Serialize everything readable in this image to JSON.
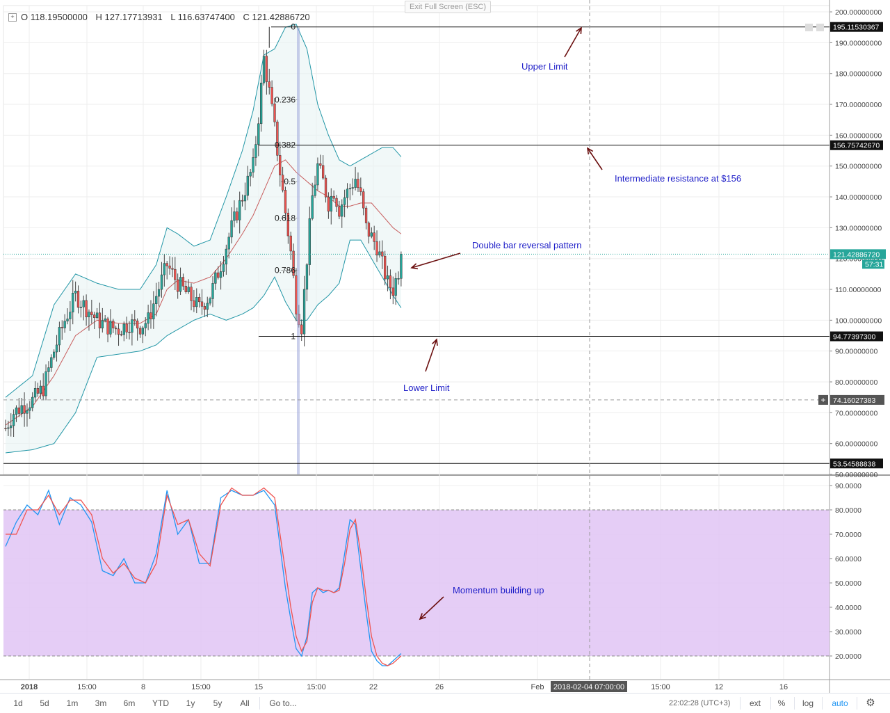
{
  "ohlc": {
    "open": "O 118.19500000",
    "high": "H 127.17713931",
    "low": "L 116.63747400",
    "close": "C 121.42886720"
  },
  "exit_fullscreen": "Exit Full Screen (ESC)",
  "chart_data": [
    {
      "type": "candlestick",
      "panel": "price",
      "ylim": [
        50,
        200
      ],
      "y_ticks": [
        50,
        60,
        70,
        80,
        90,
        100,
        110,
        120,
        130,
        140,
        150,
        160,
        170,
        180,
        190,
        200
      ],
      "y_tick_labels": [
        "50.00000000",
        "60.00000000",
        "70.00000000",
        "80.00000000",
        "90.00000000",
        "100.00000000",
        "110.00000000",
        "120.00000000",
        "130.00000000",
        "140.00000000",
        "150.00000000",
        "160.00000000",
        "170.00000000",
        "180.00000000",
        "190.00000000",
        "200.00000000"
      ],
      "x_tick_labels": [
        "2018",
        "15:00",
        "8",
        "15:00",
        "15",
        "15:00",
        "22",
        "26",
        "Feb",
        "15:00",
        "12",
        "16"
      ],
      "price_path": [
        [
          0,
          65
        ],
        [
          3,
          70
        ],
        [
          6,
          72
        ],
        [
          10,
          74
        ],
        [
          14,
          78
        ],
        [
          18,
          90
        ],
        [
          22,
          100
        ],
        [
          26,
          108
        ],
        [
          30,
          104
        ],
        [
          34,
          100
        ],
        [
          38,
          98
        ],
        [
          42,
          97
        ],
        [
          46,
          99
        ],
        [
          50,
          98
        ],
        [
          53,
          100
        ],
        [
          56,
          108
        ],
        [
          60,
          118
        ],
        [
          64,
          112
        ],
        [
          68,
          108
        ],
        [
          72,
          104
        ],
        [
          76,
          108
        ],
        [
          80,
          118
        ],
        [
          84,
          130
        ],
        [
          88,
          140
        ],
        [
          92,
          150
        ],
        [
          94,
          166
        ],
        [
          96,
          185
        ],
        [
          98,
          174
        ],
        [
          100,
          162
        ],
        [
          102,
          148
        ],
        [
          104,
          135
        ],
        [
          106,
          122
        ],
        [
          108,
          105
        ],
        [
          110,
          98
        ],
        [
          112,
          120
        ],
        [
          114,
          140
        ],
        [
          116,
          150
        ],
        [
          118,
          145
        ],
        [
          120,
          138
        ],
        [
          122,
          142
        ],
        [
          124,
          136
        ],
        [
          126,
          140
        ],
        [
          128,
          143
        ],
        [
          130,
          146
        ],
        [
          132,
          140
        ],
        [
          134,
          130
        ],
        [
          136,
          127
        ],
        [
          138,
          124
        ],
        [
          140,
          118
        ],
        [
          142,
          112
        ],
        [
          144,
          110
        ],
        [
          146,
          116
        ],
        [
          147,
          121.43
        ]
      ],
      "bollinger": {
        "upper": [
          [
            0,
            75
          ],
          [
            10,
            82
          ],
          [
            18,
            105
          ],
          [
            26,
            115
          ],
          [
            34,
            112
          ],
          [
            42,
            110
          ],
          [
            50,
            110
          ],
          [
            56,
            118
          ],
          [
            60,
            130
          ],
          [
            64,
            128
          ],
          [
            70,
            124
          ],
          [
            76,
            126
          ],
          [
            82,
            140
          ],
          [
            88,
            155
          ],
          [
            92,
            168
          ],
          [
            96,
            186
          ],
          [
            100,
            188
          ],
          [
            104,
            195
          ],
          [
            108,
            196
          ],
          [
            112,
            188
          ],
          [
            116,
            170
          ],
          [
            120,
            160
          ],
          [
            124,
            152
          ],
          [
            128,
            150
          ],
          [
            132,
            152
          ],
          [
            136,
            154
          ],
          [
            140,
            156
          ],
          [
            144,
            156
          ],
          [
            147,
            153
          ]
        ],
        "middle": [
          [
            0,
            66
          ],
          [
            10,
            72
          ],
          [
            18,
            82
          ],
          [
            26,
            95
          ],
          [
            34,
            100
          ],
          [
            42,
            99
          ],
          [
            50,
            99
          ],
          [
            56,
            102
          ],
          [
            60,
            110
          ],
          [
            64,
            113
          ],
          [
            70,
            112
          ],
          [
            76,
            114
          ],
          [
            82,
            120
          ],
          [
            88,
            128
          ],
          [
            92,
            134
          ],
          [
            96,
            142
          ],
          [
            100,
            150
          ],
          [
            104,
            152
          ],
          [
            108,
            148
          ],
          [
            112,
            145
          ],
          [
            116,
            142
          ],
          [
            120,
            140
          ],
          [
            124,
            137
          ],
          [
            128,
            137
          ],
          [
            132,
            138
          ],
          [
            136,
            138
          ],
          [
            140,
            134
          ],
          [
            144,
            130
          ],
          [
            147,
            128
          ]
        ],
        "lower": [
          [
            0,
            57
          ],
          [
            10,
            58
          ],
          [
            18,
            60
          ],
          [
            26,
            70
          ],
          [
            34,
            88
          ],
          [
            42,
            89
          ],
          [
            50,
            90
          ],
          [
            56,
            92
          ],
          [
            60,
            95
          ],
          [
            64,
            97
          ],
          [
            70,
            100
          ],
          [
            76,
            102
          ],
          [
            82,
            100
          ],
          [
            88,
            102
          ],
          [
            92,
            104
          ],
          [
            96,
            108
          ],
          [
            100,
            114
          ],
          [
            104,
            106
          ],
          [
            108,
            100
          ],
          [
            112,
            100
          ],
          [
            116,
            105
          ],
          [
            120,
            108
          ],
          [
            124,
            112
          ],
          [
            128,
            126
          ],
          [
            132,
            126
          ],
          [
            136,
            120
          ],
          [
            140,
            114
          ],
          [
            144,
            108
          ],
          [
            147,
            104
          ]
        ]
      },
      "horizontal_lines": [
        {
          "label": "195.11530367",
          "value": 195.1153
        },
        {
          "label": "156.75742670",
          "value": 156.7574
        },
        {
          "label": "94.77397300",
          "value": 94.774
        },
        {
          "label": "53.54588838",
          "value": 53.546
        }
      ],
      "current_price": {
        "label": "121.42886720",
        "value": 121.4289,
        "countdown": "57:31"
      },
      "crosshair": {
        "price_label": "74.16027383",
        "value": 74.16,
        "time_label": "2018-02-04 07:00:00",
        "bar": 217
      },
      "fibonacci": {
        "high": 195.1153,
        "low": 94.774,
        "levels": [
          {
            "ratio": 0,
            "label": "0"
          },
          {
            "ratio": 0.236,
            "label": "0.236"
          },
          {
            "ratio": 0.382,
            "label": "0.382"
          },
          {
            "ratio": 0.5,
            "label": "0.5"
          },
          {
            "ratio": 0.618,
            "label": "0.618"
          },
          {
            "ratio": 0.786,
            "label": "0.786"
          },
          {
            "ratio": 1,
            "label": "1"
          }
        ]
      },
      "annotations": [
        {
          "text": "Upper Limit",
          "value": 183
        },
        {
          "text": "Intermediate resistance at $156",
          "value": 147
        },
        {
          "text": "Double bar reversal pattern",
          "value": 124
        },
        {
          "text": "Lower Limit",
          "value": 79
        }
      ]
    },
    {
      "type": "line",
      "panel": "stochastic",
      "ylim": [
        12,
        92
      ],
      "y_ticks": [
        20,
        30,
        40,
        50,
        60,
        70,
        80,
        90
      ],
      "y_tick_labels": [
        "20.0000",
        "30.0000",
        "40.0000",
        "50.0000",
        "60.0000",
        "70.0000",
        "80.0000",
        "90.0000"
      ],
      "band": [
        20,
        80
      ],
      "series": [
        {
          "color": "#2196f3",
          "values": [
            [
              0,
              65
            ],
            [
              4,
              75
            ],
            [
              8,
              82
            ],
            [
              12,
              78
            ],
            [
              16,
              88
            ],
            [
              20,
              74
            ],
            [
              24,
              85
            ],
            [
              28,
              82
            ],
            [
              32,
              75
            ],
            [
              36,
              55
            ],
            [
              40,
              53
            ],
            [
              44,
              60
            ],
            [
              48,
              50
            ],
            [
              52,
              50
            ],
            [
              56,
              62
            ],
            [
              60,
              88
            ],
            [
              64,
              70
            ],
            [
              68,
              76
            ],
            [
              72,
              58
            ],
            [
              76,
              58
            ],
            [
              80,
              85
            ],
            [
              84,
              88
            ],
            [
              88,
              86
            ],
            [
              92,
              86
            ],
            [
              96,
              88
            ],
            [
              100,
              82
            ],
            [
              102,
              65
            ],
            [
              104,
              48
            ],
            [
              106,
              35
            ],
            [
              108,
              23
            ],
            [
              110,
              20
            ],
            [
              112,
              28
            ],
            [
              114,
              46
            ],
            [
              116,
              48
            ],
            [
              118,
              46
            ],
            [
              120,
              47
            ],
            [
              122,
              46
            ],
            [
              124,
              48
            ],
            [
              126,
              62
            ],
            [
              128,
              76
            ],
            [
              130,
              74
            ],
            [
              132,
              56
            ],
            [
              134,
              38
            ],
            [
              136,
              22
            ],
            [
              138,
              18
            ],
            [
              140,
              16
            ],
            [
              142,
              16
            ],
            [
              144,
              18
            ],
            [
              147,
              21
            ]
          ]
        },
        {
          "color": "#ef5350",
          "values": [
            [
              0,
              70
            ],
            [
              4,
              70
            ],
            [
              8,
              80
            ],
            [
              12,
              80
            ],
            [
              16,
              86
            ],
            [
              20,
              78
            ],
            [
              24,
              84
            ],
            [
              28,
              84
            ],
            [
              32,
              78
            ],
            [
              36,
              60
            ],
            [
              40,
              54
            ],
            [
              44,
              58
            ],
            [
              48,
              52
            ],
            [
              52,
              50
            ],
            [
              56,
              58
            ],
            [
              60,
              86
            ],
            [
              64,
              74
            ],
            [
              68,
              76
            ],
            [
              72,
              62
            ],
            [
              76,
              57
            ],
            [
              80,
              82
            ],
            [
              84,
              89
            ],
            [
              88,
              86
            ],
            [
              92,
              86
            ],
            [
              96,
              89
            ],
            [
              100,
              85
            ],
            [
              102,
              70
            ],
            [
              104,
              55
            ],
            [
              106,
              40
            ],
            [
              108,
              28
            ],
            [
              110,
              22
            ],
            [
              112,
              26
            ],
            [
              114,
              42
            ],
            [
              116,
              48
            ],
            [
              118,
              47
            ],
            [
              120,
              47
            ],
            [
              122,
              46
            ],
            [
              124,
              47
            ],
            [
              126,
              58
            ],
            [
              128,
              72
            ],
            [
              130,
              76
            ],
            [
              132,
              62
            ],
            [
              134,
              44
            ],
            [
              136,
              28
            ],
            [
              138,
              20
            ],
            [
              140,
              17
            ],
            [
              142,
              16
            ],
            [
              144,
              17
            ],
            [
              147,
              20
            ]
          ]
        }
      ],
      "annotations": [
        {
          "text": "Momentum building up",
          "value": 50
        }
      ]
    }
  ],
  "toolbar": {
    "ranges": [
      "1d",
      "5d",
      "1m",
      "3m",
      "6m",
      "YTD",
      "1y",
      "5y",
      "All"
    ],
    "goto": "Go to...",
    "time": "22:02:28",
    "tz": "(UTC+3)",
    "ext": "ext",
    "pct": "%",
    "log": "log",
    "auto": "auto"
  },
  "colors": {
    "up": "#26a69a",
    "down": "#ef5350",
    "bb": "#2196a6",
    "mid": "#b71c1c",
    "annotation_text": "#1e1ec8",
    "arrow": "#6b0f0f",
    "stoch_band": "#e1c4f5",
    "fib_line": "#2a2a2a"
  }
}
